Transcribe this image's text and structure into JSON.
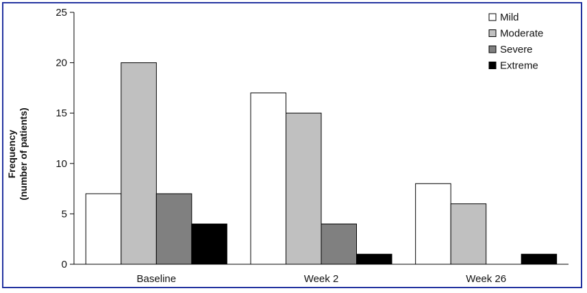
{
  "chart_data": {
    "type": "bar",
    "title": "",
    "xlabel": "",
    "ylabel_lines": [
      "Frequency",
      "(number of patients)"
    ],
    "ylim": [
      0,
      25
    ],
    "yticks": [
      0,
      5,
      10,
      15,
      20,
      25
    ],
    "grid": false,
    "legend_position": "top-right",
    "categories": [
      "Baseline",
      "Week 2",
      "Week 26"
    ],
    "series": [
      {
        "name": "Mild",
        "color": "#ffffff",
        "values": [
          7,
          17,
          8
        ]
      },
      {
        "name": "Moderate",
        "color": "#c0c0c0",
        "values": [
          20,
          15,
          6
        ]
      },
      {
        "name": "Severe",
        "color": "#808080",
        "values": [
          7,
          4,
          0
        ]
      },
      {
        "name": "Extreme",
        "color": "#000000",
        "values": [
          4,
          1,
          1
        ]
      }
    ]
  }
}
